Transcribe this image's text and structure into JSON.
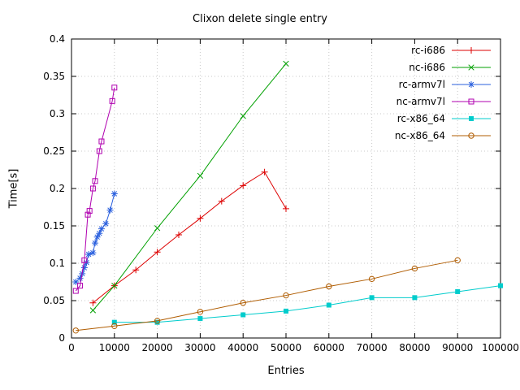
{
  "chart_data": {
    "type": "line",
    "title": "Clixon delete single entry",
    "xlabel": "Entries",
    "ylabel": "Time[s]",
    "xlim": [
      0,
      100000
    ],
    "ylim": [
      0,
      0.4
    ],
    "xticks": [
      "0",
      "10000",
      "20000",
      "30000",
      "40000",
      "50000",
      "60000",
      "70000",
      "80000",
      "90000",
      "100000"
    ],
    "yticks": [
      "0",
      "0.05",
      "0.1",
      "0.15",
      "0.2",
      "0.25",
      "0.3",
      "0.35",
      "0.4"
    ],
    "grid": true,
    "grid_style": "dotted",
    "legend_position": "top-right-inside",
    "background": "#ffffff",
    "border_color": "#000000",
    "grid_color": "#c8c8c8",
    "series": [
      {
        "name": "rc-i686",
        "color": "#dd0000",
        "marker": "plus",
        "points": [
          [
            5000,
            0.047
          ],
          [
            10000,
            0.07
          ],
          [
            15000,
            0.091
          ],
          [
            20000,
            0.115
          ],
          [
            25000,
            0.138
          ],
          [
            30000,
            0.16
          ],
          [
            35000,
            0.183
          ],
          [
            40000,
            0.204
          ],
          [
            45000,
            0.222
          ],
          [
            50000,
            0.173
          ]
        ]
      },
      {
        "name": "nc-i686",
        "color": "#00a000",
        "marker": "cross",
        "points": [
          [
            5000,
            0.037
          ],
          [
            10000,
            0.07
          ],
          [
            20000,
            0.147
          ],
          [
            30000,
            0.217
          ],
          [
            40000,
            0.297
          ],
          [
            50000,
            0.367
          ]
        ]
      },
      {
        "name": "rc-armv7l",
        "color": "#2b60de",
        "marker": "asterisk",
        "points": [
          [
            1000,
            0.075
          ],
          [
            2000,
            0.08
          ],
          [
            2500,
            0.086
          ],
          [
            3000,
            0.094
          ],
          [
            3500,
            0.101
          ],
          [
            4000,
            0.112
          ],
          [
            5000,
            0.114
          ],
          [
            5500,
            0.127
          ],
          [
            6000,
            0.135
          ],
          [
            6500,
            0.14
          ],
          [
            7000,
            0.146
          ],
          [
            8000,
            0.153
          ],
          [
            9000,
            0.171
          ],
          [
            10000,
            0.193
          ]
        ]
      },
      {
        "name": "nc-armv7l",
        "color": "#b000b0",
        "marker": "square-open",
        "points": [
          [
            1000,
            0.063
          ],
          [
            2000,
            0.07
          ],
          [
            3000,
            0.104
          ],
          [
            3800,
            0.165
          ],
          [
            4200,
            0.17
          ],
          [
            5000,
            0.2
          ],
          [
            5500,
            0.21
          ],
          [
            6500,
            0.25
          ],
          [
            7000,
            0.263
          ],
          [
            9500,
            0.317
          ],
          [
            10000,
            0.335
          ]
        ]
      },
      {
        "name": "rc-x86_64",
        "color": "#00cccc",
        "marker": "square-filled",
        "points": [
          [
            10000,
            0.021
          ],
          [
            20000,
            0.021
          ],
          [
            30000,
            0.026
          ],
          [
            40000,
            0.031
          ],
          [
            50000,
            0.036
          ],
          [
            60000,
            0.044
          ],
          [
            70000,
            0.054
          ],
          [
            80000,
            0.054
          ],
          [
            90000,
            0.062
          ],
          [
            100000,
            0.07
          ]
        ]
      },
      {
        "name": "nc-x86_64",
        "color": "#b05c00",
        "marker": "circle-open",
        "points": [
          [
            1000,
            0.01
          ],
          [
            10000,
            0.016
          ],
          [
            20000,
            0.023
          ],
          [
            30000,
            0.035
          ],
          [
            40000,
            0.047
          ],
          [
            50000,
            0.057
          ],
          [
            60000,
            0.069
          ],
          [
            70000,
            0.079
          ],
          [
            80000,
            0.093
          ],
          [
            90000,
            0.104
          ]
        ]
      }
    ]
  }
}
